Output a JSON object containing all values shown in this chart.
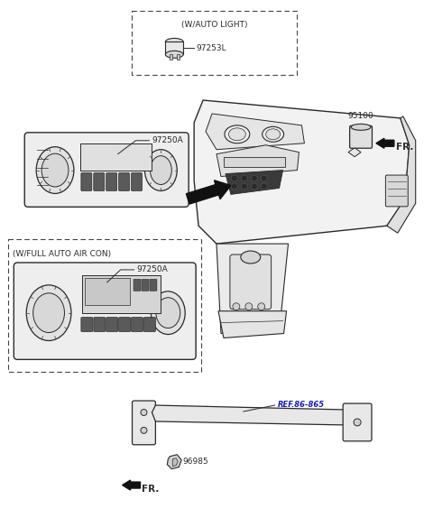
{
  "bg_color": "#ffffff",
  "line_color": "#2a2a2a",
  "fig_width": 4.8,
  "fig_height": 5.74,
  "dpi": 100,
  "labels": {
    "auto_light_box_title": "(W/AUTO LIGHT)",
    "auto_light_part": "97253L",
    "part_95100": "95100",
    "fr_top": "FR.",
    "part_97250A_top": "97250A",
    "full_auto_box_title": "(W/FULL AUTO AIR CON)",
    "part_97250A_bottom": "97250A",
    "ref_86_865": "REF.86-865",
    "part_96985": "96985",
    "fr_bottom": "FR."
  },
  "font_size_label": 6.5,
  "font_size_part": 6.5
}
